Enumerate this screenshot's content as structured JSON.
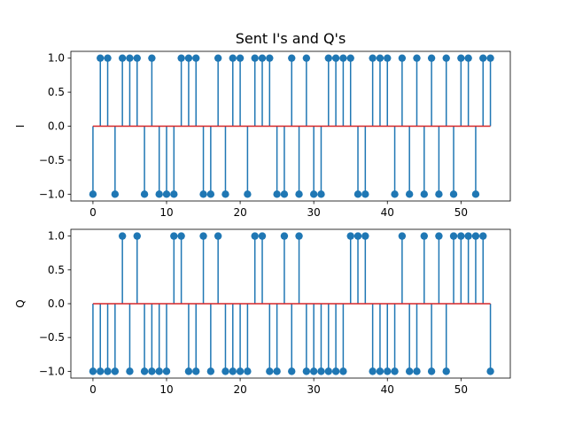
{
  "chart_data": [
    {
      "type": "stem",
      "title": "Sent I's and Q's",
      "xlabel": "",
      "ylabel": "I",
      "xlim": [
        -3.0,
        56.7
      ],
      "ylim": [
        -1.1,
        1.1
      ],
      "xticks": [
        0,
        10,
        20,
        30,
        40,
        50
      ],
      "yticks": [
        -1.0,
        -0.5,
        0.0,
        0.5,
        1.0
      ],
      "ytick_labels": [
        "−1.0",
        "−0.5",
        "0.0",
        "0.5",
        "1.0"
      ],
      "baseline": 0,
      "x": [
        0,
        1,
        2,
        3,
        4,
        5,
        6,
        7,
        8,
        9,
        10,
        11,
        12,
        13,
        14,
        15,
        16,
        17,
        18,
        19,
        20,
        21,
        22,
        23,
        24,
        25,
        26,
        27,
        28,
        29,
        30,
        31,
        32,
        33,
        34,
        35,
        36,
        37,
        38,
        39,
        40,
        41,
        42,
        43,
        44,
        45,
        46,
        47,
        48,
        49,
        50,
        51,
        52,
        53,
        54
      ],
      "values": [
        -1,
        1,
        1,
        -1,
        1,
        1,
        1,
        -1,
        1,
        -1,
        -1,
        -1,
        1,
        1,
        1,
        -1,
        -1,
        1,
        -1,
        1,
        1,
        -1,
        1,
        1,
        1,
        -1,
        -1,
        1,
        -1,
        1,
        -1,
        -1,
        1,
        1,
        1,
        1,
        -1,
        -1,
        1,
        1,
        1,
        -1,
        1,
        -1,
        1,
        -1,
        1,
        -1,
        1,
        -1,
        1,
        1,
        -1,
        1,
        1
      ],
      "stem_color": "#1f77b4",
      "marker_color": "#1f77b4",
      "baseline_color": "#d62728"
    },
    {
      "type": "stem",
      "title": "",
      "xlabel": "",
      "ylabel": "Q",
      "xlim": [
        -3.0,
        56.7
      ],
      "ylim": [
        -1.1,
        1.1
      ],
      "xticks": [
        0,
        10,
        20,
        30,
        40,
        50
      ],
      "yticks": [
        -1.0,
        -0.5,
        0.0,
        0.5,
        1.0
      ],
      "ytick_labels": [
        "−1.0",
        "−0.5",
        "0.0",
        "0.5",
        "1.0"
      ],
      "baseline": 0,
      "x": [
        0,
        1,
        2,
        3,
        4,
        5,
        6,
        7,
        8,
        9,
        10,
        11,
        12,
        13,
        14,
        15,
        16,
        17,
        18,
        19,
        20,
        21,
        22,
        23,
        24,
        25,
        26,
        27,
        28,
        29,
        30,
        31,
        32,
        33,
        34,
        35,
        36,
        37,
        38,
        39,
        40,
        41,
        42,
        43,
        44,
        45,
        46,
        47,
        48,
        49,
        50,
        51,
        52,
        53,
        54
      ],
      "values": [
        -1,
        -1,
        -1,
        -1,
        1,
        -1,
        1,
        -1,
        -1,
        -1,
        -1,
        1,
        1,
        -1,
        -1,
        1,
        -1,
        1,
        -1,
        -1,
        -1,
        -1,
        1,
        1,
        -1,
        -1,
        1,
        -1,
        1,
        -1,
        -1,
        -1,
        -1,
        -1,
        -1,
        1,
        1,
        1,
        -1,
        -1,
        -1,
        -1,
        1,
        -1,
        -1,
        1,
        -1,
        1,
        -1,
        1,
        1,
        1,
        1,
        1,
        -1
      ],
      "stem_color": "#1f77b4",
      "marker_color": "#1f77b4",
      "baseline_color": "#d62728"
    }
  ]
}
